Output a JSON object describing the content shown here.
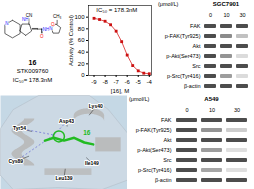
{
  "chart_data": [
    {
      "type": "structure",
      "title": "16",
      "annotations": [
        "N",
        "NH",
        "CN",
        "O",
        "NH",
        "N",
        "O",
        "CH₃",
        "STK009760",
        "IC₅₀= 178.3nM"
      ],
      "colors": [
        "#1a1aff",
        "#1a1aff",
        "#000000",
        "red",
        "#1a1aff",
        "#1a1aff",
        "red",
        "#000000",
        "#000000",
        "#000000"
      ]
    },
    {
      "type": "line",
      "x_label": "[16], M",
      "y_label": "Activity (% Control)",
      "x": [
        -9.0,
        -8.5,
        -8.0,
        -7.5,
        -7.0,
        -6.5,
        -6.0,
        -5.5,
        -5.0,
        -4.5,
        -4.0
      ],
      "series": [
        {
          "type": "line",
          "color": "#e05050",
          "values": [
            98,
            96,
            93,
            87,
            76,
            58,
            35,
            17,
            8,
            4,
            3
          ]
        },
        {
          "type": "scatter",
          "color": "#cc1111",
          "marker": "square",
          "values": [
            98,
            96,
            93,
            87,
            76,
            58,
            35,
            17,
            8,
            4,
            3
          ]
        }
      ],
      "xlim": [
        -9.5,
        -3.8
      ],
      "xticks": [
        -9,
        -8,
        -7,
        -6,
        -5,
        -4
      ],
      "ylim": [
        0,
        120
      ],
      "yticks": [
        0,
        20,
        40,
        60,
        80,
        100
      ],
      "annotations": [
        {
          "text": "IC₅₀ = 178.3nM",
          "x": -8.8,
          "y": 112
        }
      ]
    },
    {
      "type": "heatmap",
      "title": "SGC7901",
      "x_label": "(μmol/L)",
      "categories": [
        "0",
        "10",
        "30"
      ],
      "y_categories": [
        "FAK",
        "p-FAK(Tyr925)",
        "Akt",
        "p-Akt(Ser473)",
        "Src",
        "p-Src(Tyr416)",
        "β-actin"
      ],
      "values": [
        [
          1.0,
          1.0,
          1.0
        ],
        [
          1.0,
          0.65,
          0.35
        ],
        [
          1.0,
          1.0,
          1.0
        ],
        [
          1.0,
          0.6,
          0.2
        ],
        [
          1.0,
          1.0,
          1.0
        ],
        [
          1.0,
          0.55,
          0.2
        ],
        [
          1.0,
          1.0,
          1.0
        ]
      ]
    },
    {
      "type": "docking",
      "title": "16",
      "annotations": [
        "Lys40",
        "Asp43",
        "Tyr54",
        "Cys89",
        "Ile149",
        "Leu139"
      ],
      "colors": [
        "#c5d8e5",
        "#22bb22",
        "#3333cc"
      ]
    },
    {
      "type": "heatmap",
      "title": "A549",
      "x_label": "(μmol/L)",
      "categories": [
        "0",
        "10",
        "30"
      ],
      "y_categories": [
        "FAK",
        "p-FAK(Tyr925)",
        "Akt",
        "p-Akt(Ser473)",
        "Src",
        "p-Src(Tyr416)",
        "β-actin"
      ],
      "values": [
        [
          1.0,
          1.0,
          1.0
        ],
        [
          1.0,
          0.6,
          0.28
        ],
        [
          1.0,
          1.0,
          1.0
        ],
        [
          1.0,
          0.55,
          0.18
        ],
        [
          1.0,
          1.0,
          1.0
        ],
        [
          1.0,
          0.5,
          0.18
        ],
        [
          1.0,
          1.0,
          1.0
        ]
      ]
    }
  ]
}
